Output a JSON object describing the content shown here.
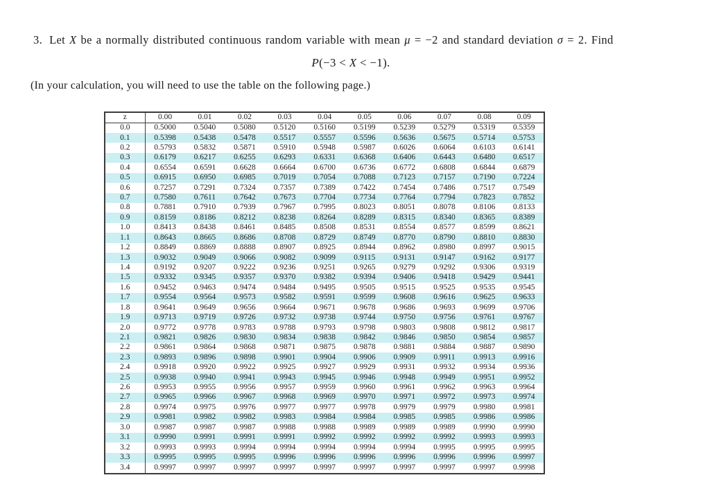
{
  "problem": {
    "number": "3.",
    "text_before_x": "Let ",
    "var_x": "X",
    "text_after_x": " be a normally distributed continuous random variable with mean ",
    "mu": "μ",
    "mu_value": " = −2 and standard deviation ",
    "sigma": "σ",
    "sigma_value": " = 2. Find"
  },
  "formula": {
    "p_var": "P",
    "lhs": "(−3 < ",
    "x_var": "X",
    "rhs": " < −1)."
  },
  "note": "(In your calculation, you will need to use the table on the following page.)",
  "table": {
    "corner_header": "z",
    "col_headers": [
      "0.00",
      "0.01",
      "0.02",
      "0.03",
      "0.04",
      "0.05",
      "0.06",
      "0.07",
      "0.08",
      "0.09"
    ],
    "stripe_color": "#cbeff2",
    "rows": [
      {
        "z": "0.0",
        "values": [
          "0.5000",
          "0.5040",
          "0.5080",
          "0.5120",
          "0.5160",
          "0.5199",
          "0.5239",
          "0.5279",
          "0.5319",
          "0.5359"
        ]
      },
      {
        "z": "0.1",
        "values": [
          "0.5398",
          "0.5438",
          "0.5478",
          "0.5517",
          "0.5557",
          "0.5596",
          "0.5636",
          "0.5675",
          "0.5714",
          "0.5753"
        ]
      },
      {
        "z": "0.2",
        "values": [
          "0.5793",
          "0.5832",
          "0.5871",
          "0.5910",
          "0.5948",
          "0.5987",
          "0.6026",
          "0.6064",
          "0.6103",
          "0.6141"
        ]
      },
      {
        "z": "0.3",
        "values": [
          "0.6179",
          "0.6217",
          "0.6255",
          "0.6293",
          "0.6331",
          "0.6368",
          "0.6406",
          "0.6443",
          "0.6480",
          "0.6517"
        ]
      },
      {
        "z": "0.4",
        "values": [
          "0.6554",
          "0.6591",
          "0.6628",
          "0.6664",
          "0.6700",
          "0.6736",
          "0.6772",
          "0.6808",
          "0.6844",
          "0.6879"
        ]
      },
      {
        "z": "0.5",
        "values": [
          "0.6915",
          "0.6950",
          "0.6985",
          "0.7019",
          "0.7054",
          "0.7088",
          "0.7123",
          "0.7157",
          "0.7190",
          "0.7224"
        ]
      },
      {
        "z": "0.6",
        "values": [
          "0.7257",
          "0.7291",
          "0.7324",
          "0.7357",
          "0.7389",
          "0.7422",
          "0.7454",
          "0.7486",
          "0.7517",
          "0.7549"
        ]
      },
      {
        "z": "0.7",
        "values": [
          "0.7580",
          "0.7611",
          "0.7642",
          "0.7673",
          "0.7704",
          "0.7734",
          "0.7764",
          "0.7794",
          "0.7823",
          "0.7852"
        ]
      },
      {
        "z": "0.8",
        "values": [
          "0.7881",
          "0.7910",
          "0.7939",
          "0.7967",
          "0.7995",
          "0.8023",
          "0.8051",
          "0.8078",
          "0.8106",
          "0.8133"
        ]
      },
      {
        "z": "0.9",
        "values": [
          "0.8159",
          "0.8186",
          "0.8212",
          "0.8238",
          "0.8264",
          "0.8289",
          "0.8315",
          "0.8340",
          "0.8365",
          "0.8389"
        ]
      },
      {
        "z": "1.0",
        "values": [
          "0.8413",
          "0.8438",
          "0.8461",
          "0.8485",
          "0.8508",
          "0.8531",
          "0.8554",
          "0.8577",
          "0.8599",
          "0.8621"
        ]
      },
      {
        "z": "1.1",
        "values": [
          "0.8643",
          "0.8665",
          "0.8686",
          "0.8708",
          "0.8729",
          "0.8749",
          "0.8770",
          "0.8790",
          "0.8810",
          "0.8830"
        ]
      },
      {
        "z": "1.2",
        "values": [
          "0.8849",
          "0.8869",
          "0.8888",
          "0.8907",
          "0.8925",
          "0.8944",
          "0.8962",
          "0.8980",
          "0.8997",
          "0.9015"
        ]
      },
      {
        "z": "1.3",
        "values": [
          "0.9032",
          "0.9049",
          "0.9066",
          "0.9082",
          "0.9099",
          "0.9115",
          "0.9131",
          "0.9147",
          "0.9162",
          "0.9177"
        ]
      },
      {
        "z": "1.4",
        "values": [
          "0.9192",
          "0.9207",
          "0.9222",
          "0.9236",
          "0.9251",
          "0.9265",
          "0.9279",
          "0.9292",
          "0.9306",
          "0.9319"
        ]
      },
      {
        "z": "1.5",
        "values": [
          "0.9332",
          "0.9345",
          "0.9357",
          "0.9370",
          "0.9382",
          "0.9394",
          "0.9406",
          "0.9418",
          "0.9429",
          "0.9441"
        ]
      },
      {
        "z": "1.6",
        "values": [
          "0.9452",
          "0.9463",
          "0.9474",
          "0.9484",
          "0.9495",
          "0.9505",
          "0.9515",
          "0.9525",
          "0.9535",
          "0.9545"
        ]
      },
      {
        "z": "1.7",
        "values": [
          "0.9554",
          "0.9564",
          "0.9573",
          "0.9582",
          "0.9591",
          "0.9599",
          "0.9608",
          "0.9616",
          "0.9625",
          "0.9633"
        ]
      },
      {
        "z": "1.8",
        "values": [
          "0.9641",
          "0.9649",
          "0.9656",
          "0.9664",
          "0.9671",
          "0.9678",
          "0.9686",
          "0.9693",
          "0.9699",
          "0.9706"
        ]
      },
      {
        "z": "1.9",
        "values": [
          "0.9713",
          "0.9719",
          "0.9726",
          "0.9732",
          "0.9738",
          "0.9744",
          "0.9750",
          "0.9756",
          "0.9761",
          "0.9767"
        ]
      },
      {
        "z": "2.0",
        "values": [
          "0.9772",
          "0.9778",
          "0.9783",
          "0.9788",
          "0.9793",
          "0.9798",
          "0.9803",
          "0.9808",
          "0.9812",
          "0.9817"
        ]
      },
      {
        "z": "2.1",
        "values": [
          "0.9821",
          "0.9826",
          "0.9830",
          "0.9834",
          "0.9838",
          "0.9842",
          "0.9846",
          "0.9850",
          "0.9854",
          "0.9857"
        ]
      },
      {
        "z": "2.2",
        "values": [
          "0.9861",
          "0.9864",
          "0.9868",
          "0.9871",
          "0.9875",
          "0.9878",
          "0.9881",
          "0.9884",
          "0.9887",
          "0.9890"
        ]
      },
      {
        "z": "2.3",
        "values": [
          "0.9893",
          "0.9896",
          "0.9898",
          "0.9901",
          "0.9904",
          "0.9906",
          "0.9909",
          "0.9911",
          "0.9913",
          "0.9916"
        ]
      },
      {
        "z": "2.4",
        "values": [
          "0.9918",
          "0.9920",
          "0.9922",
          "0.9925",
          "0.9927",
          "0.9929",
          "0.9931",
          "0.9932",
          "0.9934",
          "0.9936"
        ]
      },
      {
        "z": "2.5",
        "values": [
          "0.9938",
          "0.9940",
          "0.9941",
          "0.9943",
          "0.9945",
          "0.9946",
          "0.9948",
          "0.9949",
          "0.9951",
          "0.9952"
        ]
      },
      {
        "z": "2.6",
        "values": [
          "0.9953",
          "0.9955",
          "0.9956",
          "0.9957",
          "0.9959",
          "0.9960",
          "0.9961",
          "0.9962",
          "0.9963",
          "0.9964"
        ]
      },
      {
        "z": "2.7",
        "values": [
          "0.9965",
          "0.9966",
          "0.9967",
          "0.9968",
          "0.9969",
          "0.9970",
          "0.9971",
          "0.9972",
          "0.9973",
          "0.9974"
        ]
      },
      {
        "z": "2.8",
        "values": [
          "0.9974",
          "0.9975",
          "0.9976",
          "0.9977",
          "0.9977",
          "0.9978",
          "0.9979",
          "0.9979",
          "0.9980",
          "0.9981"
        ]
      },
      {
        "z": "2.9",
        "values": [
          "0.9981",
          "0.9982",
          "0.9982",
          "0.9983",
          "0.9984",
          "0.9984",
          "0.9985",
          "0.9985",
          "0.9986",
          "0.9986"
        ]
      },
      {
        "z": "3.0",
        "values": [
          "0.9987",
          "0.9987",
          "0.9987",
          "0.9988",
          "0.9988",
          "0.9989",
          "0.9989",
          "0.9989",
          "0.9990",
          "0.9990"
        ]
      },
      {
        "z": "3.1",
        "values": [
          "0.9990",
          "0.9991",
          "0.9991",
          "0.9991",
          "0.9992",
          "0.9992",
          "0.9992",
          "0.9992",
          "0.9993",
          "0.9993"
        ]
      },
      {
        "z": "3.2",
        "values": [
          "0.9993",
          "0.9993",
          "0.9994",
          "0.9994",
          "0.9994",
          "0.9994",
          "0.9994",
          "0.9995",
          "0.9995",
          "0.9995"
        ]
      },
      {
        "z": "3.3",
        "values": [
          "0.9995",
          "0.9995",
          "0.9995",
          "0.9996",
          "0.9996",
          "0.9996",
          "0.9996",
          "0.9996",
          "0.9996",
          "0.9997"
        ]
      },
      {
        "z": "3.4",
        "values": [
          "0.9997",
          "0.9997",
          "0.9997",
          "0.9997",
          "0.9997",
          "0.9997",
          "0.9997",
          "0.9997",
          "0.9997",
          "0.9998"
        ]
      }
    ]
  }
}
